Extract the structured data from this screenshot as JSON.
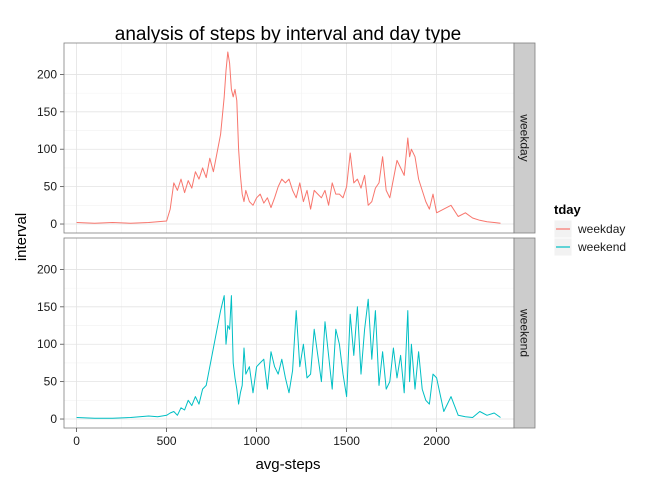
{
  "chart_data": {
    "type": "line",
    "title": "analysis of steps by interval and day type",
    "xlabel": "avg-steps",
    "ylabel": "interval",
    "xlim": [
      -70,
      2430
    ],
    "ylim": [
      -12,
      242
    ],
    "x_ticks": [
      0,
      500,
      1000,
      1500,
      2000
    ],
    "y_ticks": [
      0,
      50,
      100,
      150,
      200
    ],
    "grid": true,
    "facet_variable": "tday",
    "legend": {
      "title": "tday",
      "placement": "right"
    },
    "series": [
      {
        "name": "weekday",
        "color": "#F8766D",
        "x": [
          0,
          100,
          200,
          300,
          400,
          450,
          500,
          520,
          540,
          560,
          580,
          600,
          620,
          640,
          660,
          680,
          700,
          720,
          740,
          760,
          780,
          800,
          820,
          830,
          840,
          850,
          860,
          870,
          880,
          890,
          900,
          910,
          920,
          930,
          940,
          960,
          980,
          1000,
          1020,
          1040,
          1060,
          1080,
          1100,
          1120,
          1140,
          1160,
          1180,
          1200,
          1220,
          1240,
          1260,
          1280,
          1300,
          1320,
          1340,
          1360,
          1380,
          1400,
          1420,
          1440,
          1460,
          1480,
          1500,
          1520,
          1540,
          1560,
          1580,
          1600,
          1620,
          1640,
          1660,
          1680,
          1700,
          1720,
          1740,
          1760,
          1780,
          1800,
          1820,
          1840,
          1850,
          1860,
          1880,
          1900,
          1920,
          1940,
          1960,
          1980,
          2000,
          2040,
          2080,
          2120,
          2160,
          2200,
          2240,
          2280,
          2320,
          2355
        ],
        "values": [
          2,
          1,
          2,
          1,
          2,
          3,
          4,
          20,
          55,
          45,
          60,
          42,
          58,
          48,
          70,
          60,
          75,
          62,
          88,
          70,
          95,
          120,
          170,
          205,
          230,
          215,
          180,
          170,
          180,
          165,
          100,
          65,
          40,
          30,
          45,
          30,
          25,
          35,
          40,
          28,
          35,
          22,
          35,
          50,
          60,
          55,
          60,
          45,
          35,
          55,
          30,
          45,
          20,
          45,
          40,
          35,
          45,
          25,
          55,
          40,
          40,
          35,
          50,
          95,
          55,
          60,
          48,
          65,
          25,
          30,
          48,
          55,
          90,
          45,
          35,
          60,
          85,
          75,
          65,
          115,
          90,
          100,
          90,
          60,
          45,
          30,
          20,
          40,
          15,
          20,
          25,
          10,
          15,
          8,
          5,
          3,
          2,
          1
        ]
      },
      {
        "name": "weekend",
        "color": "#00BFC4",
        "x": [
          0,
          100,
          200,
          300,
          400,
          450,
          500,
          520,
          540,
          560,
          580,
          600,
          620,
          640,
          660,
          680,
          700,
          720,
          740,
          760,
          780,
          800,
          820,
          830,
          840,
          850,
          860,
          870,
          880,
          890,
          900,
          910,
          920,
          930,
          940,
          960,
          980,
          1000,
          1020,
          1040,
          1060,
          1080,
          1100,
          1120,
          1140,
          1160,
          1180,
          1200,
          1220,
          1240,
          1260,
          1280,
          1300,
          1320,
          1340,
          1360,
          1380,
          1400,
          1420,
          1440,
          1460,
          1480,
          1500,
          1520,
          1540,
          1560,
          1580,
          1600,
          1620,
          1640,
          1660,
          1680,
          1700,
          1720,
          1740,
          1760,
          1780,
          1800,
          1820,
          1840,
          1850,
          1860,
          1880,
          1900,
          1920,
          1940,
          1960,
          1980,
          2000,
          2040,
          2080,
          2120,
          2160,
          2200,
          2240,
          2280,
          2320,
          2355
        ],
        "values": [
          2,
          1,
          1,
          2,
          4,
          3,
          5,
          8,
          10,
          5,
          15,
          12,
          25,
          18,
          30,
          20,
          40,
          45,
          70,
          95,
          120,
          145,
          165,
          100,
          125,
          120,
          165,
          75,
          55,
          40,
          20,
          35,
          45,
          95,
          60,
          70,
          35,
          70,
          75,
          80,
          40,
          90,
          70,
          60,
          80,
          55,
          35,
          65,
          145,
          70,
          100,
          55,
          60,
          120,
          85,
          50,
          130,
          85,
          40,
          120,
          100,
          60,
          30,
          140,
          85,
          150,
          60,
          120,
          160,
          80,
          145,
          45,
          90,
          40,
          50,
          95,
          55,
          85,
          35,
          145,
          50,
          100,
          40,
          90,
          40,
          25,
          20,
          60,
          55,
          10,
          30,
          5,
          3,
          2,
          10,
          5,
          8,
          2
        ]
      }
    ]
  }
}
